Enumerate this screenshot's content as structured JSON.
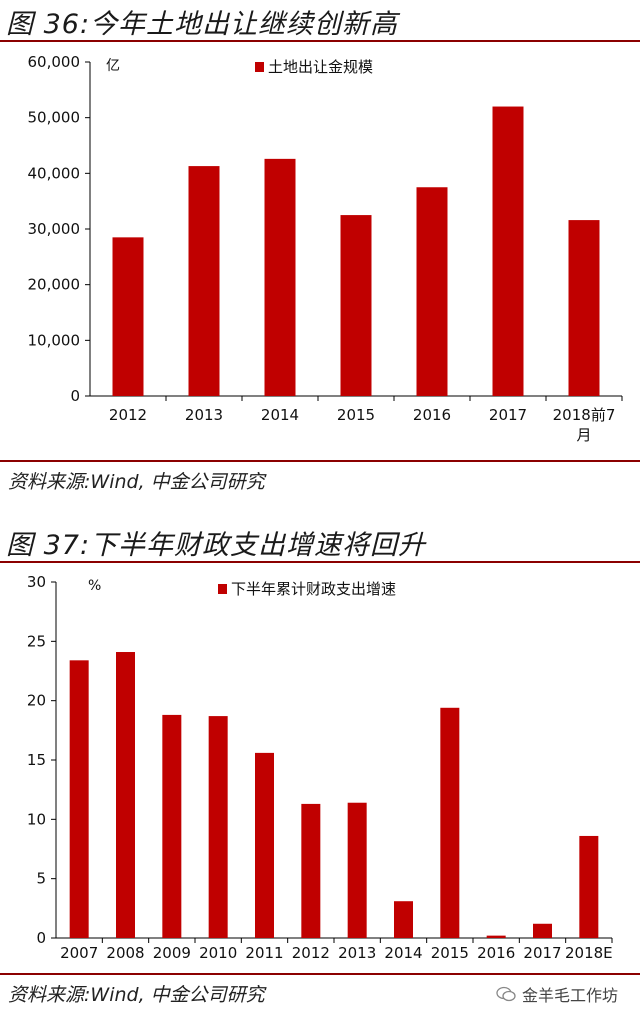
{
  "figures": [
    {
      "title": "图 36:今年土地出让继续创新高",
      "source": "资料来源:Wind, 中金公司研究",
      "chart_data": {
        "type": "bar",
        "unit_label": "亿",
        "categories": [
          "2012",
          "2013",
          "2014",
          "2015",
          "2016",
          "2017",
          "2018前7\n月"
        ],
        "series": [
          {
            "name": "土地出让金规模",
            "values": [
              28500,
              41300,
              42600,
              32500,
              37500,
              52000,
              31600
            ]
          }
        ],
        "ylim": [
          0,
          60000
        ],
        "yticks": [
          "0",
          "10,000",
          "20,000",
          "30,000",
          "40,000",
          "50,000",
          "60,000"
        ],
        "grid": false,
        "legend": "top-center",
        "color": "#c00000"
      }
    },
    {
      "title": "图 37:下半年财政支出增速将回升",
      "source": "资料来源:Wind, 中金公司研究",
      "chart_data": {
        "type": "bar",
        "unit_label": "%",
        "categories": [
          "2007",
          "2008",
          "2009",
          "2010",
          "2011",
          "2012",
          "2013",
          "2014",
          "2015",
          "2016",
          "2017",
          "2018E"
        ],
        "series": [
          {
            "name": "下半年累计财政支出增速",
            "values": [
              23.4,
              24.1,
              18.8,
              18.7,
              15.6,
              11.3,
              11.4,
              3.1,
              19.4,
              0.2,
              1.2,
              8.6
            ]
          }
        ],
        "ylim": [
          0,
          30
        ],
        "yticks": [
          "0",
          "5",
          "10",
          "15",
          "20",
          "25",
          "30"
        ],
        "grid": false,
        "legend": "top-center",
        "color": "#c00000"
      }
    }
  ],
  "watermark": {
    "icon": "wechat-icon",
    "text": "金羊毛工作坊"
  }
}
